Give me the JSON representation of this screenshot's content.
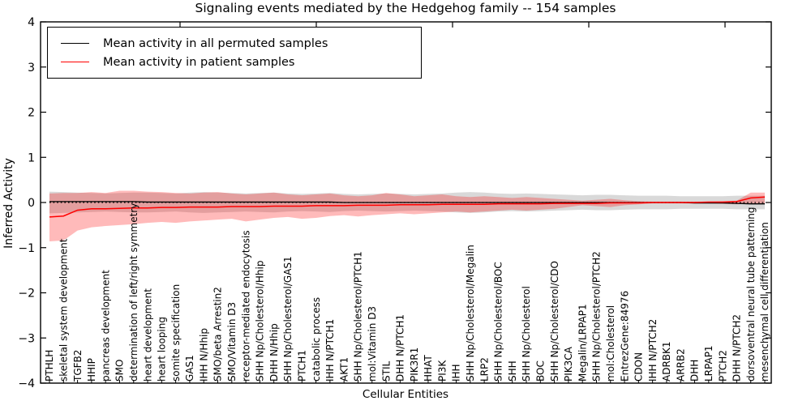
{
  "title": "Signaling events mediated by the Hedgehog family -- 154 samples",
  "legend": {
    "items": [
      {
        "label": "Mean activity in all permuted samples",
        "color": "#000000"
      },
      {
        "label": "Mean activity in patient samples",
        "color": "#ff0000"
      }
    ]
  },
  "chart_data": {
    "type": "line",
    "title": "Signaling events mediated by the Hedgehog family -- 154 samples",
    "xlabel": "Cellular Entities",
    "ylabel": "Inferred Activity",
    "ylim": [
      -4,
      4
    ],
    "y_ticks": [
      "4",
      "3",
      "2",
      "1",
      "0",
      "−1",
      "−2",
      "−3",
      "−4"
    ],
    "grid": false,
    "legend_position": "upper left",
    "zero_line": {
      "style": "dotted",
      "color": "#000000",
      "y": 0
    },
    "categories": [
      "PTHLH",
      "skeletal system development",
      "TGFB2",
      "HHIP",
      "pancreas development",
      "SMO",
      "determination of left/right symmetry",
      "heart development",
      "heart looping",
      "somite specification",
      "GAS1",
      "IHH N/Hhip",
      "SMO/beta Arrestin2",
      "SMO/Vitamin D3",
      "receptor-mediated endocytosis",
      "SHH Np/Cholesterol/Hhip",
      "DHH N/Hhip",
      "SHH Np/Cholesterol/GAS1",
      "PTCH1",
      "catabolic process",
      "IHH N/PTCH1",
      "AKT1",
      "SHH Np/Cholesterol/PTCH1",
      "mol:Vitamin D3",
      "STIL",
      "DHH N/PTCH1",
      "PIK3R1",
      "HHAT",
      "PI3K",
      "IHH",
      "SHH Np/Cholesterol/Megalin",
      "LRP2",
      "SHH Np/Cholesterol/BOC",
      "SHH",
      "SHH Np/Cholesterol",
      "BOC",
      "SHH Np/Cholesterol/CDO",
      "PIK3CA",
      "Megalin/LRPAP1",
      "SHH Np/Cholesterol/PTCH2",
      "mol:Cholesterol",
      "EntrezGene:84976",
      "CDON",
      "IHH N/PTCH2",
      "ADRBK1",
      "ARRB2",
      "DHH",
      "LRPAP1",
      "PTCH2",
      "DHH N/PTCH2",
      "dorsoventral neural tube patterning",
      "mesenchymal cell differentiation"
    ],
    "series": [
      {
        "name": "Mean activity in all permuted samples",
        "color": "#000000",
        "width": 1.3,
        "values": [
          0.02,
          0.02,
          0.02,
          0.02,
          0.02,
          0.02,
          0.02,
          0.01,
          0.01,
          0.01,
          0.01,
          0.01,
          0.01,
          0.01,
          0.01,
          0.01,
          0.01,
          0.01,
          0.01,
          0.01,
          0.01,
          0.0,
          0.0,
          0.0,
          0.0,
          0.0,
          0.0,
          0.0,
          0.0,
          0.0,
          0.0,
          0.0,
          0.0,
          0.0,
          0.0,
          0.0,
          0.0,
          0.0,
          0.0,
          0.0,
          0.0,
          0.0,
          0.0,
          0.0,
          0.0,
          0.0,
          -0.01,
          -0.01,
          -0.01,
          -0.02,
          -0.03,
          -0.03
        ]
      },
      {
        "name": "Mean activity in patient samples",
        "color": "#ff0000",
        "width": 1.5,
        "values": [
          -0.32,
          -0.3,
          -0.17,
          -0.14,
          -0.14,
          -0.13,
          -0.12,
          -0.12,
          -0.11,
          -0.11,
          -0.1,
          -0.1,
          -0.1,
          -0.09,
          -0.09,
          -0.09,
          -0.08,
          -0.08,
          -0.08,
          -0.07,
          -0.07,
          -0.07,
          -0.06,
          -0.06,
          -0.06,
          -0.05,
          -0.05,
          -0.05,
          -0.04,
          -0.04,
          -0.04,
          -0.04,
          -0.03,
          -0.03,
          -0.03,
          -0.03,
          -0.02,
          -0.02,
          -0.02,
          -0.02,
          -0.01,
          -0.01,
          -0.01,
          0.0,
          0.0,
          0.0,
          0.0,
          0.01,
          0.01,
          0.02,
          0.1,
          0.12
        ]
      }
    ],
    "bands": [
      {
        "name": "permuted samples std band",
        "color": "#000000",
        "opacity": 0.15,
        "top": [
          0.24,
          0.23,
          0.22,
          0.21,
          0.2,
          0.21,
          0.22,
          0.22,
          0.21,
          0.2,
          0.22,
          0.23,
          0.22,
          0.21,
          0.2,
          0.21,
          0.22,
          0.2,
          0.19,
          0.2,
          0.21,
          0.19,
          0.18,
          0.19,
          0.2,
          0.19,
          0.18,
          0.19,
          0.2,
          0.22,
          0.23,
          0.22,
          0.2,
          0.19,
          0.2,
          0.19,
          0.18,
          0.17,
          0.16,
          0.17,
          0.17,
          0.16,
          0.15,
          0.15,
          0.15,
          0.14,
          0.14,
          0.14,
          0.14,
          0.15,
          0.15,
          0.15
        ],
        "bottom": [
          -0.24,
          -0.23,
          -0.22,
          -0.21,
          -0.2,
          -0.21,
          -0.22,
          -0.22,
          -0.21,
          -0.2,
          -0.22,
          -0.23,
          -0.22,
          -0.21,
          -0.2,
          -0.21,
          -0.22,
          -0.2,
          -0.19,
          -0.2,
          -0.21,
          -0.19,
          -0.18,
          -0.19,
          -0.2,
          -0.19,
          -0.18,
          -0.19,
          -0.2,
          -0.22,
          -0.23,
          -0.22,
          -0.2,
          -0.19,
          -0.2,
          -0.19,
          -0.18,
          -0.17,
          -0.16,
          -0.17,
          -0.17,
          -0.16,
          -0.15,
          -0.15,
          -0.15,
          -0.14,
          -0.14,
          -0.14,
          -0.14,
          -0.15,
          -0.15,
          -0.15
        ]
      },
      {
        "name": "patient samples std band",
        "color": "#ff0000",
        "opacity": 0.27,
        "top": [
          0.2,
          0.21,
          0.21,
          0.23,
          0.21,
          0.26,
          0.26,
          0.24,
          0.23,
          0.21,
          0.2,
          0.22,
          0.23,
          0.2,
          0.18,
          0.2,
          0.22,
          0.18,
          0.16,
          0.18,
          0.2,
          0.16,
          0.14,
          0.16,
          0.21,
          0.18,
          0.14,
          0.16,
          0.18,
          0.14,
          0.12,
          0.14,
          0.12,
          0.1,
          0.12,
          0.1,
          0.08,
          0.06,
          0.04,
          0.06,
          0.08,
          0.05,
          0.03,
          0.02,
          0.02,
          0.02,
          0.02,
          0.02,
          0.03,
          0.04,
          0.22,
          0.22
        ],
        "bottom": [
          -0.86,
          -0.84,
          -0.62,
          -0.55,
          -0.52,
          -0.5,
          -0.48,
          -0.45,
          -0.43,
          -0.45,
          -0.42,
          -0.4,
          -0.38,
          -0.36,
          -0.42,
          -0.38,
          -0.34,
          -0.32,
          -0.36,
          -0.34,
          -0.3,
          -0.28,
          -0.31,
          -0.28,
          -0.26,
          -0.24,
          -0.26,
          -0.24,
          -0.22,
          -0.2,
          -0.22,
          -0.2,
          -0.18,
          -0.16,
          -0.18,
          -0.16,
          -0.14,
          -0.1,
          -0.06,
          -0.08,
          -0.1,
          -0.06,
          -0.04,
          -0.02,
          -0.02,
          -0.02,
          -0.02,
          -0.02,
          -0.03,
          -0.04,
          -0.02,
          -0.02
        ]
      }
    ]
  }
}
